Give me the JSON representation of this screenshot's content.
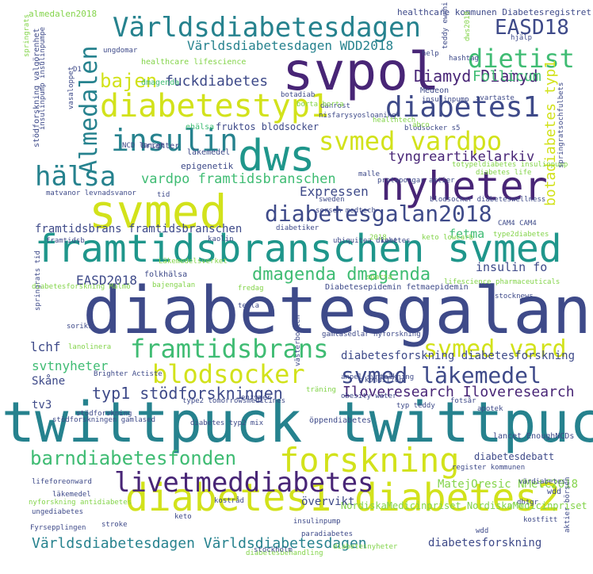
{
  "palette": {
    "yellow": "#d2e21b",
    "lime": "#84d44b",
    "green": "#3fbc73",
    "teal": "#1f968b",
    "cyan": "#26828e",
    "blue": "#31688e",
    "indigo": "#3e4a89",
    "purple": "#482576",
    "dark": "#440154"
  },
  "words": [
    {
      "id": "diabetesgalan",
      "text": "diabetesgalan",
      "color": "indigo"
    },
    {
      "id": "twittpuck",
      "text": "twittpuck twittpuck",
      "color": "cyan"
    },
    {
      "id": "framtidsbranschen-svmed",
      "text": "framtidsbranschen svmed",
      "color": "teal"
    },
    {
      "id": "diabetes1-diabetes2",
      "text": "diabetes1 diabetes2",
      "color": "yellow"
    },
    {
      "id": "svpol",
      "text": "svpol",
      "color": "purple"
    },
    {
      "id": "svmed",
      "text": "svmed",
      "color": "yellow"
    },
    {
      "id": "dws",
      "text": "dws",
      "color": "teal"
    },
    {
      "id": "nyheter",
      "text": "nyheter",
      "color": "purple"
    },
    {
      "id": "varldsdiabetesdagen",
      "text": "Världsdiabetesdagen",
      "color": "cyan"
    },
    {
      "id": "diabetestyp1",
      "text": "diabetestyp1",
      "color": "yellow"
    },
    {
      "id": "diabetes1",
      "text": "diabetes1",
      "color": "indigo"
    },
    {
      "id": "almedalen",
      "text": "Almedalen",
      "color": "cyan"
    },
    {
      "id": "insulin",
      "text": "insulin",
      "color": "cyan"
    },
    {
      "id": "forskning",
      "text": "forskning",
      "color": "yellow"
    },
    {
      "id": "livetmeddiabetes",
      "text": "livetmeddiabetes",
      "color": "purple"
    },
    {
      "id": "svmed-vardpo",
      "text": "svmed vardpo",
      "color": "yellow"
    },
    {
      "id": "diabetesgalan2018",
      "text": "diabetesgalan2018",
      "color": "indigo"
    },
    {
      "id": "halsa",
      "text": "hälsa",
      "color": "cyan"
    },
    {
      "id": "bajen",
      "text": "bajen",
      "color": "yellow"
    },
    {
      "id": "dietist",
      "text": "dietist",
      "color": "green"
    },
    {
      "id": "framtidsbrans",
      "text": "framtidsbrans",
      "color": "green"
    },
    {
      "id": "svmed-vard",
      "text": "svmed vard",
      "color": "yellow"
    },
    {
      "id": "blodsocker",
      "text": "blodsocker",
      "color": "yellow"
    },
    {
      "id": "svmed-lakemedel",
      "text": "svmed läkemedel",
      "color": "indigo"
    },
    {
      "id": "barndiabetesfonden",
      "text": "barndiabetesfonden",
      "color": "green"
    },
    {
      "id": "varldsdiabetesdagen-2",
      "text": "Världsdiabetesdagen Världsdiabetesdagen",
      "color": "cyan"
    },
    {
      "id": "dmagenda-dmagenda",
      "text": "dmagenda dmagenda",
      "color": "green"
    },
    {
      "id": "typ1-stodforskningen",
      "text": "typ1 stödforskningen",
      "color": "indigo"
    },
    {
      "id": "iloveresearch",
      "text": "Iloveresearch Iloveresearch",
      "color": "purple"
    },
    {
      "id": "easd18",
      "text": "EASD18",
      "color": "indigo"
    },
    {
      "id": "botadiabetes-typ1",
      "text": "botadiabetes typ1",
      "color": "yellow"
    },
    {
      "id": "varldsdiabetesdagen-wdd2018",
      "text": "Världsdiabetesdagen WDD2018",
      "color": "cyan"
    },
    {
      "id": "diamyd",
      "text": "Diamyd Diamyd",
      "color": "purple"
    },
    {
      "id": "fuckdiabetes",
      "text": "fuckdiabetes",
      "color": "indigo"
    },
    {
      "id": "follicum",
      "text": "Follicum",
      "color": "green"
    },
    {
      "id": "vardpo-framtidsbranschen",
      "text": "vardpo framtidsbranschen",
      "color": "green"
    },
    {
      "id": "tyngreartikelarkiv",
      "text": "tyngreartikelarkiv",
      "color": "purple"
    },
    {
      "id": "framtidsbrans-framtidsbranschen",
      "text": "framtidsbrans framtidsbranschen",
      "color": "indigo"
    },
    {
      "id": "expressen",
      "text": "Expressen",
      "color": "indigo"
    },
    {
      "id": "easd2018",
      "text": "EASD2018",
      "color": "indigo"
    },
    {
      "id": "fetma",
      "text": "fetma",
      "color": "green"
    },
    {
      "id": "insulin-fo",
      "text": "insulin fo",
      "color": "indigo"
    },
    {
      "id": "lchf",
      "text": "lchf",
      "color": "indigo"
    },
    {
      "id": "svtnyheter",
      "text": "svtnyheter",
      "color": "green"
    },
    {
      "id": "skane",
      "text": "Skåne",
      "color": "indigo"
    },
    {
      "id": "tv3",
      "text": "tv3",
      "color": "indigo"
    },
    {
      "id": "diabetesforskning-2",
      "text": "diabetesforskning diabetesforskning",
      "color": "indigo"
    },
    {
      "id": "matejoresic",
      "text": "MatejOresic NMetC2018",
      "color": "lime"
    },
    {
      "id": "nordiskamedicinpriset",
      "text": "NordiskaMedicinpriset NordiskaMedicinpriset",
      "color": "lime"
    },
    {
      "id": "overvikt",
      "text": "övervikt",
      "color": "indigo"
    },
    {
      "id": "diabetesforskning",
      "text": "diabetesforskning",
      "color": "indigo"
    },
    {
      "id": "diabetesdebatt",
      "text": "diabetesdebatt",
      "color": "indigo"
    },
    {
      "id": "almedalen2018",
      "text": "almedalen2018",
      "color": "lime"
    },
    {
      "id": "healthcare-kommunen",
      "text": "healthcare kommunen Diabetesregistret",
      "color": "indigo"
    },
    {
      "id": "healthcare-lifescience",
      "text": "healthcare lifescience",
      "color": "lime"
    },
    {
      "id": "fruktos-blodsocker",
      "text": "fruktos blodsocker",
      "color": "indigo"
    },
    {
      "id": "dmagenda",
      "text": "dmagenda",
      "color": "green"
    },
    {
      "id": "ehalsa",
      "text": "ehälsa",
      "color": "green"
    },
    {
      "id": "epigenetik",
      "text": "epigenetik",
      "color": "indigo"
    },
    {
      "id": "brighter",
      "text": "Brighter",
      "color": "indigo"
    },
    {
      "id": "lakemedel",
      "text": "läkemedel",
      "color": "indigo"
    },
    {
      "id": "medeon",
      "text": "Medeon",
      "color": "indigo"
    },
    {
      "id": "botadiab",
      "text": "botadiab",
      "color": "indigo"
    },
    {
      "id": "danrost",
      "text": "danrost",
      "color": "indigo"
    },
    {
      "id": "insulinpump",
      "text": "insulinpump",
      "color": "indigo"
    },
    {
      "id": "nisfarysyosloaning",
      "text": "nisfarysyosloaning",
      "color": "indigo"
    },
    {
      "id": "blodsocker-s5",
      "text": "blodsocker s5",
      "color": "indigo"
    },
    {
      "id": "protapongar",
      "text": "protapongar aktier",
      "color": "indigo"
    },
    {
      "id": "sweden",
      "text": "sweden",
      "color": "indigo"
    },
    {
      "id": "malle",
      "text": "malle",
      "color": "indigo"
    },
    {
      "id": "blodsocker-diabeteswellness",
      "text": "blodsocker diabeteswellness",
      "color": "indigo"
    },
    {
      "id": "ncd-lancet",
      "text": "NCD lancet",
      "color": "indigo"
    },
    {
      "id": "totypeldiabetes",
      "text": "totypeldiabetes insulinpump",
      "color": "lime"
    },
    {
      "id": "diabetes-life",
      "text": "diabetes life",
      "color": "lime"
    },
    {
      "id": "kost",
      "text": "kost",
      "color": "indigo"
    },
    {
      "id": "keto-lowcarb",
      "text": "keto lowcarb",
      "color": "lime"
    },
    {
      "id": "type2diabetes",
      "text": "type2diabetes",
      "color": "lime"
    },
    {
      "id": "ubiquitea-diabetes",
      "text": "ubiquitea diabetes",
      "color": "indigo"
    },
    {
      "id": "diabetesepidemin",
      "text": "Diabetesepidemin fetmaepidemin",
      "color": "indigo"
    },
    {
      "id": "gamlasedlar",
      "text": "gamlasedlar nyforskning",
      "color": "indigo"
    },
    {
      "id": "folkhalsa",
      "text": "folkhälsa",
      "color": "indigo"
    },
    {
      "id": "bajengalan",
      "text": "bajengalan",
      "color": "lime"
    },
    {
      "id": "fredag",
      "text": "fredag",
      "color": "lime"
    },
    {
      "id": "framtidsb",
      "text": "framtidsb",
      "color": "indigo"
    },
    {
      "id": "lifescience-pharmaceuticals",
      "text": "lifescience pharmaceuticals",
      "color": "lime"
    },
    {
      "id": "stocknews",
      "text": "stocknews",
      "color": "indigo"
    },
    {
      "id": "springrats-tid",
      "text": "springrats tid",
      "color": "indigo"
    },
    {
      "id": "soriks",
      "text": "soriks",
      "color": "indigo"
    },
    {
      "id": "brighter-actiste",
      "text": "Brighter Actiste",
      "color": "indigo"
    },
    {
      "id": "kondition",
      "text": "kondition",
      "color": "indigo"
    },
    {
      "id": "traning",
      "text": "träning",
      "color": "lime"
    },
    {
      "id": "obesity-water",
      "text": "obesity water",
      "color": "indigo"
    },
    {
      "id": "fotsar",
      "text": "fotsår",
      "color": "indigo"
    },
    {
      "id": "typ-teddy",
      "text": "typ teddy",
      "color": "indigo"
    },
    {
      "id": "apotek",
      "text": "apotek",
      "color": "indigo"
    },
    {
      "id": "type2",
      "text": "type2 tomorrowsmedicines",
      "color": "indigo"
    },
    {
      "id": "enzymer",
      "text": "enzymer",
      "color": "indigo"
    },
    {
      "id": "stodforskningen-gamlased",
      "text": "stödforskningen gamlased",
      "color": "indigo"
    },
    {
      "id": "oppendiabetes",
      "text": "öppendiabetes",
      "color": "indigo"
    },
    {
      "id": "lancet-enoughncds",
      "text": "lancet EnoughNCDs",
      "color": "indigo"
    },
    {
      "id": "lifeforeonward",
      "text": "lifeforeonward",
      "color": "indigo"
    },
    {
      "id": "register-kommunen",
      "text": "register kommunen",
      "color": "indigo"
    },
    {
      "id": "lakemedel-2",
      "text": "läkemedel",
      "color": "indigo"
    },
    {
      "id": "vardiabetes",
      "text": "värdiabetes",
      "color": "indigo"
    },
    {
      "id": "nyforskning",
      "text": "nyforskning antidiabetes",
      "color": "lime"
    },
    {
      "id": "ungediabetes",
      "text": "ungediabetes",
      "color": "indigo"
    },
    {
      "id": "stroke",
      "text": "stroke",
      "color": "indigo"
    },
    {
      "id": "fyrsepplingen",
      "text": "Fyrsepplingen",
      "color": "indigo"
    },
    {
      "id": "kostrad",
      "text": "kostråd",
      "color": "indigo"
    },
    {
      "id": "diabetesbehandling",
      "text": "diabetesbehandling",
      "color": "lime"
    },
    {
      "id": "wdd",
      "text": "wdd",
      "color": "indigo"
    },
    {
      "id": "lakemedelsverket",
      "text": "Läkemedelsverket",
      "color": "lime"
    },
    {
      "id": "dbtgr",
      "text": "dbtgr",
      "color": "indigo"
    },
    {
      "id": "hashtag",
      "text": "hashtag",
      "color": "indigo"
    },
    {
      "id": "springrats",
      "text": "springrats",
      "color": "lime"
    },
    {
      "id": "stodforskning-valgorenhet",
      "text": "stödforskning valgörenhet",
      "color": "indigo"
    },
    {
      "id": "insulinpump-insulinpumpe",
      "text": "insulinpump insulinpumpe",
      "color": "indigo"
    },
    {
      "id": "vasalopet",
      "text": "vasaloppet",
      "color": "indigo"
    },
    {
      "id": "teddy",
      "text": "teddy ewmhi",
      "color": "indigo"
    },
    {
      "id": "dws2018",
      "text": "dws2018",
      "color": "lime"
    },
    {
      "id": "springrats-ochfulbet",
      "text": "springratsochfulbets",
      "color": "indigo"
    },
    {
      "id": "aktier-borsen",
      "text": "aktier börsen",
      "color": "indigo"
    },
    {
      "id": "vasterbotten",
      "text": "västerbotten",
      "color": "indigo"
    },
    {
      "id": "hdlp",
      "text": "help",
      "color": "indigo"
    },
    {
      "id": "matvanor",
      "text": "matvanor levnadsvanor",
      "color": "indigo"
    },
    {
      "id": "sorsen",
      "text": "sorsen medtech",
      "color": "indigo"
    },
    {
      "id": "diabetiker",
      "text": "diabetiker",
      "color": "indigo"
    },
    {
      "id": "cam4",
      "text": "CAM4 CAM4",
      "color": "indigo"
    },
    {
      "id": "tid",
      "text": "tid",
      "color": "indigo"
    },
    {
      "id": "kaolin",
      "text": "kaolin",
      "color": "indigo"
    },
    {
      "id": "diabetesforskning-malmo",
      "text": "diabetesforskning Malmö",
      "color": "lime"
    },
    {
      "id": "wdd-2",
      "text": "wdd",
      "color": "indigo"
    },
    {
      "id": "sparta",
      "text": "sparta",
      "color": "lime"
    },
    {
      "id": "tegla",
      "text": "tegla",
      "color": "indigo"
    },
    {
      "id": "lanolinera",
      "text": "lanolinera",
      "color": "lime"
    },
    {
      "id": "stokholm",
      "text": "stockholm",
      "color": "indigo"
    },
    {
      "id": "diabetes-typ2",
      "text": "diabetes typ2 mix",
      "color": "indigo"
    },
    {
      "id": "paradiabetes",
      "text": "paradiabetes",
      "color": "indigo"
    },
    {
      "id": "stodforskning",
      "text": "stödforskning",
      "color": "indigo"
    },
    {
      "id": "borta-borta",
      "text": "borta borta",
      "color": "lime"
    },
    {
      "id": "d1",
      "text": "D1",
      "color": "indigo"
    },
    {
      "id": "ungdomar",
      "text": "ungdomar",
      "color": "indigo"
    },
    {
      "id": "healthtech",
      "text": "healthtech",
      "color": "lime"
    },
    {
      "id": "abco",
      "text": "abco",
      "color": "lime"
    },
    {
      "id": "insulinpump-2",
      "text": "insulinpump",
      "color": "indigo"
    },
    {
      "id": "gnupl",
      "text": "anpel syntolkning",
      "color": "indigo"
    },
    {
      "id": "hjalp",
      "text": "hjälp",
      "color": "indigo"
    },
    {
      "id": "nfsc",
      "text": "nfsc",
      "color": "lime"
    },
    {
      "id": "kostfitt",
      "text": "kostfitt",
      "color": "indigo"
    },
    {
      "id": "keto",
      "text": "keto",
      "color": "indigo"
    },
    {
      "id": "diabetesnyheter",
      "text": "diabetesnyheter",
      "color": "lime"
    },
    {
      "id": "svartaste",
      "text": "svartaste",
      "color": "indigo"
    },
    {
      "id": "zed",
      "text": "2018",
      "color": "lime"
    }
  ]
}
